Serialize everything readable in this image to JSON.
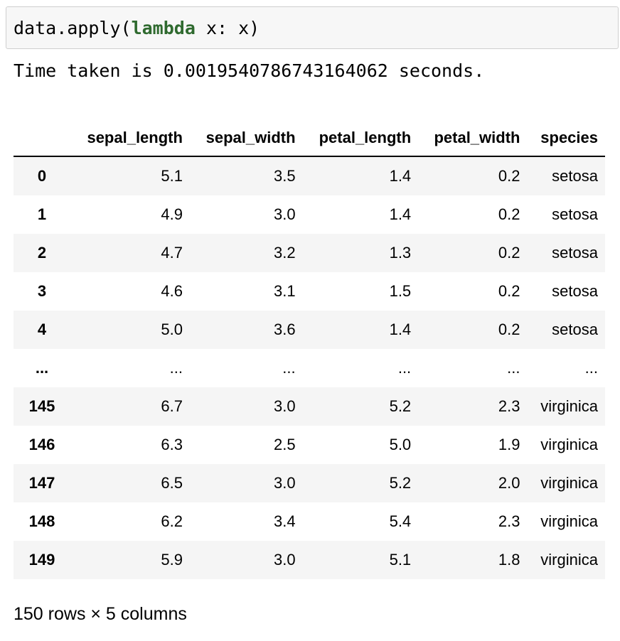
{
  "code_cell": {
    "prefix": "data.apply",
    "open_paren": "(",
    "keyword": "lambda",
    "body": " x: x",
    "close_paren": ")"
  },
  "output": {
    "text": "Time taken is 0.0019540786743164062 seconds."
  },
  "dataframe": {
    "columns": [
      "",
      "sepal_length",
      "sepal_width",
      "petal_length",
      "petal_width",
      "species"
    ],
    "rows": [
      [
        "0",
        "5.1",
        "3.5",
        "1.4",
        "0.2",
        "setosa"
      ],
      [
        "1",
        "4.9",
        "3.0",
        "1.4",
        "0.2",
        "setosa"
      ],
      [
        "2",
        "4.7",
        "3.2",
        "1.3",
        "0.2",
        "setosa"
      ],
      [
        "3",
        "4.6",
        "3.1",
        "1.5",
        "0.2",
        "setosa"
      ],
      [
        "4",
        "5.0",
        "3.6",
        "1.4",
        "0.2",
        "setosa"
      ],
      [
        "...",
        "...",
        "...",
        "...",
        "...",
        "..."
      ],
      [
        "145",
        "6.7",
        "3.0",
        "5.2",
        "2.3",
        "virginica"
      ],
      [
        "146",
        "6.3",
        "2.5",
        "5.0",
        "1.9",
        "virginica"
      ],
      [
        "147",
        "6.5",
        "3.0",
        "5.2",
        "2.0",
        "virginica"
      ],
      [
        "148",
        "6.2",
        "3.4",
        "5.4",
        "2.3",
        "virginica"
      ],
      [
        "149",
        "5.9",
        "3.0",
        "5.1",
        "1.8",
        "virginica"
      ]
    ],
    "footer": "150 rows × 5 columns"
  }
}
